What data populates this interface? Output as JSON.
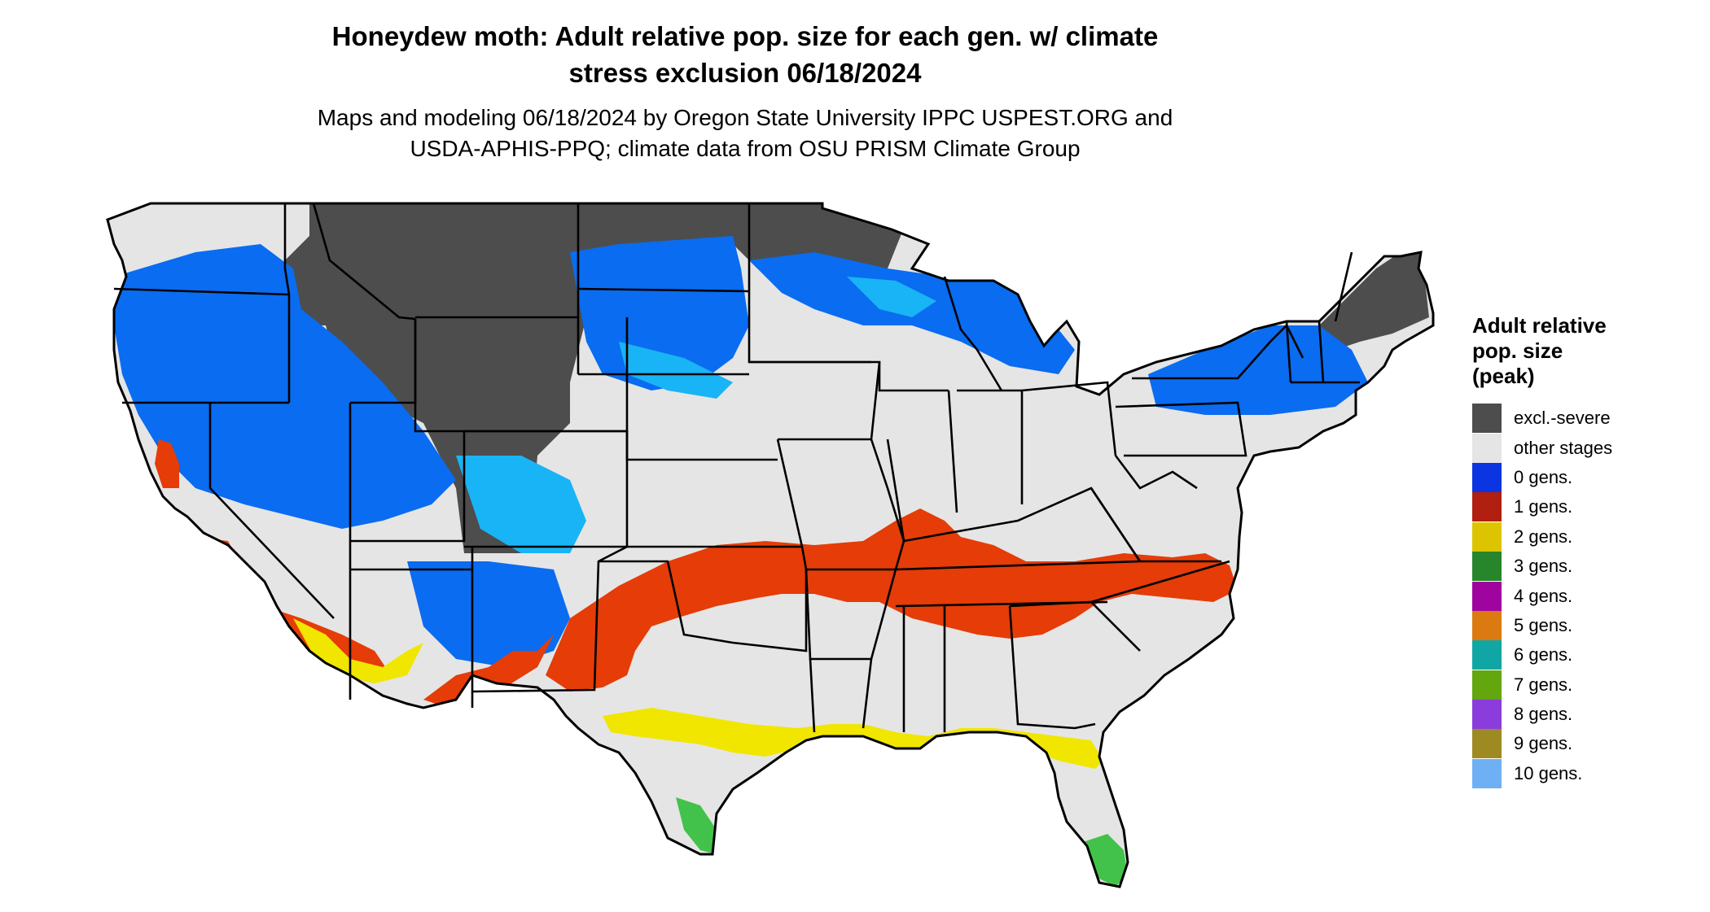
{
  "title_line1": "Honeydew moth: Adult relative pop. size for each gen. w/ climate",
  "title_line2": "stress exclusion 06/18/2024",
  "subtitle_line1": "Maps and modeling 06/18/2024 by Oregon State University IPPC USPEST.ORG and",
  "subtitle_line2": "USDA-APHIS-PPQ; climate data from OSU PRISM Climate Group",
  "legend": {
    "title": "Adult relative\npop. size\n(peak)",
    "items": [
      {
        "label": "excl.-severe",
        "color": "#4d4d4d"
      },
      {
        "label": "other stages",
        "color": "#e5e5e5"
      },
      {
        "label": "0 gens.",
        "color": "#0a35e0"
      },
      {
        "label": "1 gens.",
        "color": "#b01f0f"
      },
      {
        "label": "2 gens.",
        "color": "#dcc500"
      },
      {
        "label": "3 gens.",
        "color": "#27862b"
      },
      {
        "label": "4 gens.",
        "color": "#a0049e"
      },
      {
        "label": "5 gens.",
        "color": "#db7a10"
      },
      {
        "label": "6 gens.",
        "color": "#10a6a6"
      },
      {
        "label": "7 gens.",
        "color": "#64a60e"
      },
      {
        "label": "8 gens.",
        "color": "#8a3cdc"
      },
      {
        "label": "9 gens.",
        "color": "#9e8a22"
      },
      {
        "label": "10 gens.",
        "color": "#6fb0f5"
      }
    ]
  },
  "map_colors": {
    "land": "#e5e5e5",
    "excluded": "#4d4d4d",
    "cold_blue": "#0a6cf0",
    "cold_light": "#19b4f5",
    "one_gen": "#e53c08",
    "two_gen": "#f0e600",
    "three_gen": "#42c24a",
    "borders": "#000000"
  }
}
